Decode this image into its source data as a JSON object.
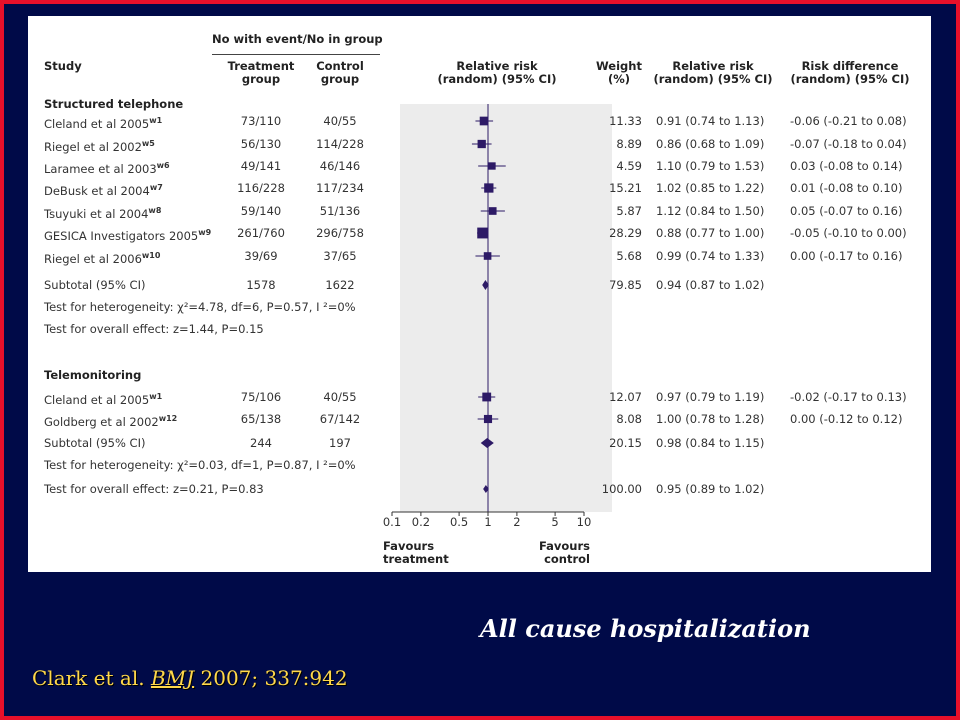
{
  "header": {
    "study": "Study",
    "group_title": "No with event/No in group",
    "treatment": "Treatment\ngroup",
    "control": "Control\ngroup",
    "rr_plot": "Relative risk\n(random) (95% CI)",
    "weight": "Weight\n(%)",
    "rr_text": "Relative risk\n(random) (95% CI)",
    "rd": "Risk difference\n(random) (95% CI)"
  },
  "sections": [
    {
      "title": "Structured telephone",
      "rows": [
        {
          "study": "Cleland et al 2005",
          "sup": "w1",
          "treat": "73/110",
          "ctrl": "40/55",
          "weight": "11.33",
          "rr_text": "0.91 (0.74 to 1.13)",
          "rd": "-0.06 (-0.21 to 0.08)"
        },
        {
          "study": "Riegel et al 2002",
          "sup": "w5",
          "treat": "56/130",
          "ctrl": "114/228",
          "weight": "8.89",
          "rr_text": "0.86 (0.68 to 1.09)",
          "rd": "-0.07 (-0.18 to 0.04)"
        },
        {
          "study": "Laramee et al 2003",
          "sup": "w6",
          "treat": "49/141",
          "ctrl": "46/146",
          "weight": "4.59",
          "rr_text": "1.10 (0.79 to 1.53)",
          "rd": "0.03 (-0.08 to 0.14)"
        },
        {
          "study": "DeBusk et al 2004",
          "sup": "w7",
          "treat": "116/228",
          "ctrl": "117/234",
          "weight": "15.21",
          "rr_text": "1.02 (0.85 to 1.22)",
          "rd": "0.01 (-0.08 to 0.10)"
        },
        {
          "study": "Tsuyuki et al 2004",
          "sup": "w8",
          "treat": "59/140",
          "ctrl": "51/136",
          "weight": "5.87",
          "rr_text": "1.12 (0.84 to 1.50)",
          "rd": "0.05 (-0.07 to 0.16)"
        },
        {
          "study": "GESICA Investigators 2005",
          "sup": "w9",
          "treat": "261/760",
          "ctrl": "296/758",
          "weight": "28.29",
          "rr_text": "0.88 (0.77 to 1.00)",
          "rd": "-0.05 (-0.10 to 0.00)"
        },
        {
          "study": "Riegel et al 2006",
          "sup": "w10",
          "treat": "39/69",
          "ctrl": "37/65",
          "weight": "5.68",
          "rr_text": "0.99 (0.74 to 1.33)",
          "rd": "0.00 (-0.17 to 0.16)"
        }
      ],
      "subtotal": {
        "label": "Subtotal (95% CI)",
        "treat": "1578",
        "ctrl": "1622",
        "weight": "79.85",
        "rr_text": "0.94 (0.87 to 1.02)"
      },
      "heterogeneity": "Test for heterogeneity: χ²=4.78, df=6, P=0.57, I ²=0%",
      "overall": "Test for overall effect: z=1.44, P=0.15"
    },
    {
      "title": "Telemonitoring",
      "rows": [
        {
          "study": "Cleland et al 2005",
          "sup": "w1",
          "treat": "75/106",
          "ctrl": "40/55",
          "weight": "12.07",
          "rr_text": "0.97 (0.79 to 1.19)",
          "rd": "-0.02 (-0.17 to 0.13)"
        },
        {
          "study": "Goldberg et al 2002",
          "sup": "w12",
          "treat": "65/138",
          "ctrl": "67/142",
          "weight": "8.08",
          "rr_text": "1.00 (0.78 to 1.28)",
          "rd": "0.00 (-0.12 to 0.12)"
        }
      ],
      "subtotal": {
        "label": "Subtotal (95% CI)",
        "treat": "244",
        "ctrl": "197",
        "weight": "20.15",
        "rr_text": "0.98 (0.84 to 1.15)"
      },
      "heterogeneity": "Test for heterogeneity: χ²=0.03, df=1, P=0.87, I ²=0%",
      "overall": "Test for overall effect: z=0.21, P=0.83"
    }
  ],
  "total": {
    "weight": "100.00",
    "rr_text": "0.95 (0.89 to 1.02)"
  },
  "axis": {
    "ticks": [
      "0.1",
      "0.2",
      "0.5",
      "1",
      "2",
      "5",
      "10"
    ]
  },
  "favours": {
    "left": "Favours\ntreatment",
    "right": "Favours\ncontrol"
  },
  "caption": "All cause hospitalization",
  "citation": {
    "prefix": "Clark et al. ",
    "journal": "BMJ",
    "suffix": " 2007; 337:942"
  },
  "colors": {
    "marker": "#2d1a66",
    "background": "#000a48",
    "border": "#e8102a",
    "citation": "#ffd84a"
  },
  "chart_data": {
    "type": "forest",
    "xscale": "log",
    "xlim": [
      0.1,
      10
    ],
    "xticks": [
      0.1,
      0.2,
      0.5,
      1,
      2,
      5,
      10
    ],
    "points": [
      {
        "rr": 0.91,
        "lo": 0.74,
        "hi": 1.13,
        "weight": 11.33,
        "kind": "study"
      },
      {
        "rr": 0.86,
        "lo": 0.68,
        "hi": 1.09,
        "weight": 8.89,
        "kind": "study"
      },
      {
        "rr": 1.1,
        "lo": 0.79,
        "hi": 1.53,
        "weight": 4.59,
        "kind": "study"
      },
      {
        "rr": 1.02,
        "lo": 0.85,
        "hi": 1.22,
        "weight": 15.21,
        "kind": "study"
      },
      {
        "rr": 1.12,
        "lo": 0.84,
        "hi": 1.5,
        "weight": 5.87,
        "kind": "study"
      },
      {
        "rr": 0.88,
        "lo": 0.77,
        "hi": 1.0,
        "weight": 28.29,
        "kind": "study"
      },
      {
        "rr": 0.99,
        "lo": 0.74,
        "hi": 1.33,
        "weight": 5.68,
        "kind": "study"
      },
      {
        "rr": 0.94,
        "lo": 0.87,
        "hi": 1.02,
        "weight": 79.85,
        "kind": "subtotal"
      },
      {
        "rr": 0.97,
        "lo": 0.79,
        "hi": 1.19,
        "weight": 12.07,
        "kind": "study"
      },
      {
        "rr": 1.0,
        "lo": 0.78,
        "hi": 1.28,
        "weight": 8.08,
        "kind": "study"
      },
      {
        "rr": 0.98,
        "lo": 0.84,
        "hi": 1.15,
        "weight": 20.15,
        "kind": "subtotal"
      },
      {
        "rr": 0.95,
        "lo": 0.89,
        "hi": 1.02,
        "weight": 100.0,
        "kind": "total"
      }
    ]
  }
}
